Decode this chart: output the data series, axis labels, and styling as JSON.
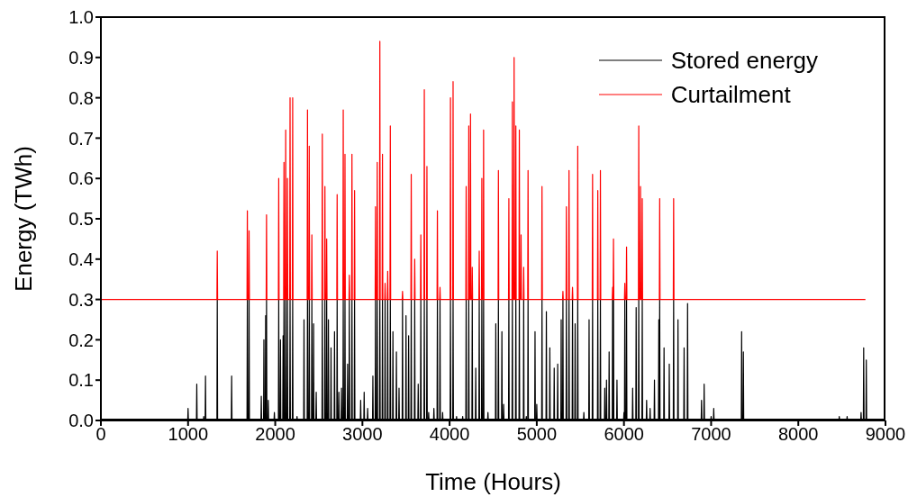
{
  "chart_data": {
    "type": "line",
    "xlabel": "Time (Hours)",
    "ylabel": "Energy (TWh)",
    "xlim": [
      0,
      9000
    ],
    "xticks": [
      0,
      1000,
      2000,
      3000,
      4000,
      5000,
      6000,
      7000,
      8000,
      9000
    ],
    "ylim": [
      0,
      1
    ],
    "yticks": [
      {
        "value": 0,
        "label": "0.0"
      },
      0.1,
      0.2,
      0.3,
      0.4,
      0.5,
      0.6,
      0.7,
      0.8,
      0.9,
      {
        "value": 1,
        "label": "1.0"
      }
    ],
    "grid": false,
    "legend": "top right",
    "marker": "none",
    "line_style": "solid",
    "series": [
      {
        "name": "Stored energy",
        "color": "#000000",
        "x": [
          0,
          996,
          1000,
          1004,
          1096,
          1100,
          1104,
          1176,
          1180,
          1184,
          1196,
          1200,
          1204,
          1331,
          1335,
          1339,
          1496,
          1500,
          1504,
          1676,
          1680,
          1684,
          1696,
          1700,
          1704,
          1836,
          1840,
          1844,
          1866,
          1870,
          1874,
          1886,
          1890,
          1894,
          1896,
          1900,
          1904,
          1916,
          1920,
          1924,
          1986,
          1990,
          1994,
          2036,
          2040,
          2044,
          2056,
          2060,
          2064,
          2086,
          2090,
          2094,
          2096,
          2100,
          2104,
          2116,
          2120,
          2124,
          2136,
          2140,
          2144,
          2166,
          2170,
          2174,
          2196,
          2200,
          2204,
          2246,
          2250,
          2254,
          2326,
          2330,
          2334,
          2366,
          2370,
          2374,
          2386,
          2390,
          2394,
          2416,
          2420,
          2424,
          2436,
          2440,
          2444,
          2466,
          2470,
          2474,
          2536,
          2540,
          2544,
          2566,
          2570,
          2574,
          2586,
          2590,
          2594,
          2606,
          2610,
          2614,
          2636,
          2640,
          2644,
          2676,
          2680,
          2684,
          2706,
          2710,
          2714,
          2726,
          2730,
          2734,
          2756,
          2760,
          2764,
          2776,
          2780,
          2784,
          2796,
          2800,
          2804,
          2826,
          2830,
          2834,
          2846,
          2850,
          2854,
          2876,
          2880,
          2884,
          2906,
          2910,
          2914,
          2976,
          2980,
          2984,
          3016,
          3020,
          3024,
          3056,
          3060,
          3064,
          3116,
          3120,
          3124,
          3146,
          3150,
          3154,
          3166,
          3170,
          3174,
          3196,
          3200,
          3204,
          3226,
          3230,
          3234,
          3256,
          3260,
          3264,
          3286,
          3290,
          3294,
          3316,
          3320,
          3324,
          3346,
          3350,
          3354,
          3386,
          3390,
          3394,
          3416,
          3420,
          3424,
          3456,
          3460,
          3464,
          3496,
          3500,
          3504,
          3526,
          3530,
          3534,
          3556,
          3560,
          3564,
          3596,
          3600,
          3604,
          3636,
          3640,
          3644,
          3666,
          3670,
          3674,
          3706,
          3710,
          3714,
          3736,
          3740,
          3744,
          3756,
          3760,
          3764,
          3816,
          3820,
          3824,
          3856,
          3860,
          3864,
          3886,
          3890,
          3894,
          3916,
          3920,
          3924,
          4006,
          4010,
          4014,
          4036,
          4040,
          4044,
          4076,
          4080,
          4084,
          4146,
          4150,
          4154,
          4186,
          4190,
          4194,
          4216,
          4220,
          4224,
          4256,
          4260,
          4264,
          4296,
          4300,
          4304,
          4336,
          4340,
          4344,
          4366,
          4370,
          4374,
          4386,
          4390,
          4394,
          4436,
          4440,
          4444,
          4526,
          4530,
          4534,
          4556,
          4560,
          4564,
          4596,
          4600,
          4604,
          4616,
          4620,
          4624,
          4676,
          4680,
          4684,
          4716,
          4720,
          4724,
          4756,
          4760,
          4764,
          4796,
          4800,
          4804,
          4846,
          4850,
          4854,
          4876,
          4880,
          4884,
          4896,
          4900,
          4904,
          4976,
          4980,
          4984,
          4996,
          5000,
          5004,
          5056,
          5060,
          5064,
          5106,
          5110,
          5114,
          5146,
          5150,
          5154,
          5196,
          5200,
          5204,
          5236,
          5240,
          5244,
          5276,
          5280,
          5284,
          5296,
          5300,
          5304,
          5336,
          5340,
          5344,
          5366,
          5370,
          5374,
          5406,
          5410,
          5414,
          5436,
          5440,
          5444,
          5466,
          5470,
          5474,
          5536,
          5540,
          5544,
          5596,
          5600,
          5604,
          5636,
          5640,
          5644,
          5696,
          5700,
          5704,
          5726,
          5730,
          5734,
          5776,
          5780,
          5784,
          5796,
          5800,
          5804,
          5826,
          5830,
          5834,
          5866,
          5870,
          5874,
          5876,
          5880,
          5884,
          5916,
          5920,
          5924,
          5996,
          6000,
          6004,
          6006,
          6010,
          6014,
          6026,
          6030,
          6034,
          6096,
          6100,
          6104,
          6136,
          6140,
          6144,
          6166,
          6170,
          6174,
          6206,
          6210,
          6214,
          6256,
          6260,
          6264,
          6296,
          6300,
          6304,
          6346,
          6350,
          6354,
          6396,
          6400,
          6404,
          6406,
          6410,
          6414,
          6456,
          6460,
          6464,
          6516,
          6520,
          6524,
          6566,
          6570,
          6574,
          6616,
          6620,
          6624,
          6686,
          6690,
          6694,
          6726,
          6730,
          6734,
          6886,
          6890,
          6894,
          6916,
          6920,
          6924,
          6996,
          7000,
          7004,
          7026,
          7030,
          7034,
          7346,
          7350,
          7354,
          7366,
          7370,
          7374,
          8466,
          8470,
          8474,
          8556,
          8560,
          8564,
          8716,
          8720,
          8724,
          8746,
          8750,
          8754,
          8776,
          8780,
          8784,
          8800
        ],
        "values": [
          0,
          0,
          0.03,
          0,
          0,
          0.09,
          0,
          0,
          0.01,
          0,
          0,
          0.11,
          0,
          0,
          0.3,
          0,
          0,
          0.11,
          0,
          0,
          0.3,
          0,
          0,
          0.3,
          0,
          0,
          0.06,
          0,
          0,
          0.2,
          0,
          0,
          0.26,
          0,
          0,
          0.3,
          0,
          0,
          0.05,
          0,
          0,
          0.02,
          0,
          0,
          0.3,
          0,
          0,
          0.2,
          0,
          0,
          0.21,
          0,
          0,
          0.3,
          0,
          0,
          0.3,
          0,
          0,
          0.3,
          0,
          0,
          0.3,
          0,
          0,
          0.3,
          0,
          0,
          0.01,
          0,
          0,
          0.25,
          0,
          0,
          0.3,
          0,
          0,
          0.3,
          0,
          0,
          0.3,
          0,
          0,
          0.24,
          0,
          0,
          0.07,
          0,
          0,
          0.3,
          0,
          0,
          0.3,
          0,
          0,
          0.3,
          0,
          0,
          0.25,
          0,
          0,
          0.18,
          0,
          0,
          0.22,
          0,
          0,
          0.3,
          0,
          0,
          0.07,
          0,
          0,
          0.08,
          0,
          0,
          0.3,
          0,
          0,
          0.3,
          0,
          0,
          0.14,
          0,
          0,
          0.3,
          0,
          0,
          0.3,
          0,
          0,
          0.3,
          0,
          0,
          0.05,
          0,
          0,
          0.07,
          0,
          0,
          0.03,
          0,
          0,
          0.11,
          0,
          0,
          0.3,
          0,
          0,
          0.3,
          0,
          0,
          0.3,
          0,
          0,
          0.3,
          0,
          0,
          0.3,
          0,
          0,
          0.3,
          0,
          0,
          0.3,
          0,
          0,
          0.22,
          0,
          0,
          0.17,
          0,
          0,
          0.08,
          0,
          0,
          0.3,
          0,
          0,
          0.26,
          0,
          0,
          0.21,
          0,
          0,
          0.3,
          0,
          0,
          0.3,
          0,
          0,
          0.09,
          0,
          0,
          0.3,
          0,
          0,
          0.3,
          0,
          0,
          0.3,
          0,
          0,
          0.02,
          0,
          0,
          0.03,
          0,
          0,
          0.3,
          0,
          0,
          0.3,
          0,
          0,
          0.02,
          0,
          0,
          0.3,
          0,
          0,
          0.3,
          0,
          0,
          0.01,
          0,
          0,
          0.01,
          0,
          0,
          0.3,
          0,
          0,
          0.3,
          0,
          0,
          0.3,
          0,
          0,
          0.13,
          0,
          0,
          0.3,
          0,
          0,
          0.3,
          0,
          0,
          0.3,
          0,
          0,
          0.02,
          0,
          0,
          0.24,
          0,
          0,
          0.3,
          0,
          0,
          0.22,
          0,
          0,
          0.04,
          0,
          0,
          0.3,
          0,
          0,
          0.3,
          0,
          0,
          0.3,
          0,
          0,
          0.3,
          0,
          0,
          0.3,
          0,
          0,
          0.01,
          0,
          0,
          0.3,
          0,
          0,
          0.22,
          0,
          0,
          0.04,
          0,
          0,
          0.3,
          0,
          0,
          0.27,
          0,
          0,
          0.18,
          0,
          0,
          0.13,
          0,
          0,
          0.14,
          0,
          0,
          0.25,
          0,
          0,
          0.3,
          0,
          0,
          0.3,
          0,
          0,
          0.3,
          0,
          0,
          0.3,
          0,
          0,
          0.24,
          0,
          0,
          0.3,
          0,
          0,
          0.02,
          0,
          0,
          0.25,
          0,
          0,
          0.3,
          0,
          0,
          0.3,
          0,
          0,
          0.3,
          0,
          0,
          0.08,
          0,
          0,
          0.1,
          0,
          0,
          0.17,
          0,
          0,
          0.3,
          0,
          0,
          0.3,
          0,
          0,
          0.1,
          0,
          0,
          0.02,
          0,
          0,
          0.3,
          0,
          0,
          0.3,
          0,
          0,
          0.08,
          0,
          0,
          0.28,
          0,
          0,
          0.3,
          0,
          0,
          0.3,
          0,
          0,
          0.05,
          0,
          0,
          0.03,
          0,
          0,
          0.1,
          0,
          0,
          0.25,
          0,
          0,
          0.3,
          0,
          0,
          0.18,
          0,
          0,
          0.14,
          0,
          0,
          0.3,
          0,
          0,
          0.25,
          0,
          0,
          0.18,
          0,
          0,
          0.29,
          0,
          0,
          0.05,
          0,
          0,
          0.09,
          0,
          0,
          0.01,
          0,
          0,
          0.03,
          0,
          0,
          0.22,
          0,
          0,
          0.17,
          0,
          0,
          0.01,
          0,
          0,
          0.01,
          0,
          0,
          0.02,
          0,
          0,
          0.18,
          0,
          0,
          0.15,
          0,
          0
        ]
      },
      {
        "name": "Curtailment",
        "color": "#ff0000",
        "x": [
          0,
          1331,
          1335,
          1339,
          1676,
          1680,
          1684,
          1696,
          1700,
          1704,
          1896,
          1900,
          1904,
          2036,
          2040,
          2044,
          2096,
          2100,
          2104,
          2116,
          2120,
          2124,
          2136,
          2140,
          2144,
          2166,
          2170,
          2174,
          2196,
          2200,
          2204,
          2366,
          2370,
          2374,
          2386,
          2390,
          2394,
          2416,
          2420,
          2424,
          2536,
          2540,
          2544,
          2566,
          2570,
          2574,
          2586,
          2590,
          2594,
          2706,
          2710,
          2714,
          2776,
          2780,
          2784,
          2796,
          2800,
          2804,
          2846,
          2850,
          2854,
          2876,
          2880,
          2884,
          2906,
          2910,
          2914,
          3146,
          3150,
          3154,
          3166,
          3170,
          3174,
          3196,
          3200,
          3204,
          3226,
          3230,
          3234,
          3256,
          3260,
          3264,
          3286,
          3290,
          3294,
          3316,
          3320,
          3324,
          3456,
          3460,
          3464,
          3556,
          3560,
          3564,
          3596,
          3600,
          3604,
          3666,
          3670,
          3674,
          3706,
          3710,
          3714,
          3736,
          3740,
          3744,
          3856,
          3860,
          3864,
          3886,
          3890,
          3894,
          4006,
          4010,
          4014,
          4036,
          4040,
          4044,
          4186,
          4190,
          4194,
          4216,
          4220,
          4224,
          4236,
          4240,
          4244,
          4256,
          4260,
          4264,
          4336,
          4340,
          4344,
          4366,
          4370,
          4374,
          4386,
          4390,
          4394,
          4556,
          4560,
          4564,
          4676,
          4680,
          4684,
          4716,
          4720,
          4724,
          4736,
          4740,
          4744,
          4756,
          4760,
          4764,
          4796,
          4800,
          4804,
          4816,
          4820,
          4824,
          4846,
          4850,
          4854,
          4896,
          4900,
          4904,
          5056,
          5060,
          5064,
          5296,
          5300,
          5304,
          5336,
          5340,
          5344,
          5366,
          5370,
          5374,
          5406,
          5410,
          5414,
          5466,
          5470,
          5474,
          5636,
          5640,
          5644,
          5696,
          5700,
          5704,
          5726,
          5730,
          5734,
          5866,
          5870,
          5874,
          5876,
          5880,
          5884,
          6006,
          6010,
          6014,
          6026,
          6030,
          6034,
          6166,
          6170,
          6174,
          6186,
          6190,
          6194,
          6206,
          6210,
          6214,
          6406,
          6410,
          6414,
          6566,
          6570,
          6574,
          8770
        ],
        "values": [
          0.3,
          0.3,
          0.42,
          0.3,
          0.3,
          0.52,
          0.3,
          0.3,
          0.47,
          0.3,
          0.3,
          0.51,
          0.3,
          0.3,
          0.6,
          0.3,
          0.3,
          0.64,
          0.3,
          0.3,
          0.72,
          0.3,
          0.3,
          0.6,
          0.3,
          0.3,
          0.8,
          0.3,
          0.3,
          0.8,
          0.3,
          0.3,
          0.77,
          0.3,
          0.3,
          0.68,
          0.3,
          0.3,
          0.46,
          0.3,
          0.3,
          0.71,
          0.3,
          0.3,
          0.58,
          0.3,
          0.3,
          0.45,
          0.3,
          0.3,
          0.56,
          0.3,
          0.3,
          0.77,
          0.3,
          0.3,
          0.66,
          0.3,
          0.3,
          0.36,
          0.3,
          0.3,
          0.66,
          0.3,
          0.3,
          0.57,
          0.3,
          0.3,
          0.53,
          0.3,
          0.3,
          0.64,
          0.3,
          0.3,
          0.94,
          0.3,
          0.3,
          0.66,
          0.3,
          0.3,
          0.34,
          0.3,
          0.3,
          0.37,
          0.3,
          0.3,
          0.73,
          0.3,
          0.3,
          0.32,
          0.3,
          0.3,
          0.61,
          0.3,
          0.3,
          0.4,
          0.3,
          0.3,
          0.46,
          0.3,
          0.3,
          0.82,
          0.3,
          0.3,
          0.63,
          0.3,
          0.3,
          0.52,
          0.3,
          0.3,
          0.33,
          0.3,
          0.3,
          0.8,
          0.3,
          0.3,
          0.84,
          0.3,
          0.3,
          0.58,
          0.3,
          0.3,
          0.73,
          0.3,
          0.3,
          0.76,
          0.3,
          0.3,
          0.38,
          0.3,
          0.3,
          0.42,
          0.3,
          0.3,
          0.6,
          0.3,
          0.3,
          0.72,
          0.3,
          0.3,
          0.62,
          0.3,
          0.3,
          0.55,
          0.3,
          0.3,
          0.79,
          0.3,
          0.3,
          0.9,
          0.3,
          0.3,
          0.73,
          0.3,
          0.3,
          0.72,
          0.3,
          0.3,
          0.46,
          0.3,
          0.3,
          0.38,
          0.3,
          0.3,
          0.62,
          0.3,
          0.3,
          0.58,
          0.3,
          0.3,
          0.32,
          0.3,
          0.3,
          0.53,
          0.3,
          0.3,
          0.62,
          0.3,
          0.3,
          0.33,
          0.3,
          0.3,
          0.68,
          0.3,
          0.3,
          0.61,
          0.3,
          0.3,
          0.57,
          0.3,
          0.3,
          0.62,
          0.3,
          0.3,
          0.33,
          0.3,
          0.3,
          0.45,
          0.3,
          0.3,
          0.34,
          0.3,
          0.3,
          0.43,
          0.3,
          0.3,
          0.73,
          0.3,
          0.3,
          0.58,
          0.3,
          0.3,
          0.55,
          0.3,
          0.3,
          0.55,
          0.3,
          0.3,
          0.55,
          0.3,
          0.3
        ]
      }
    ]
  }
}
